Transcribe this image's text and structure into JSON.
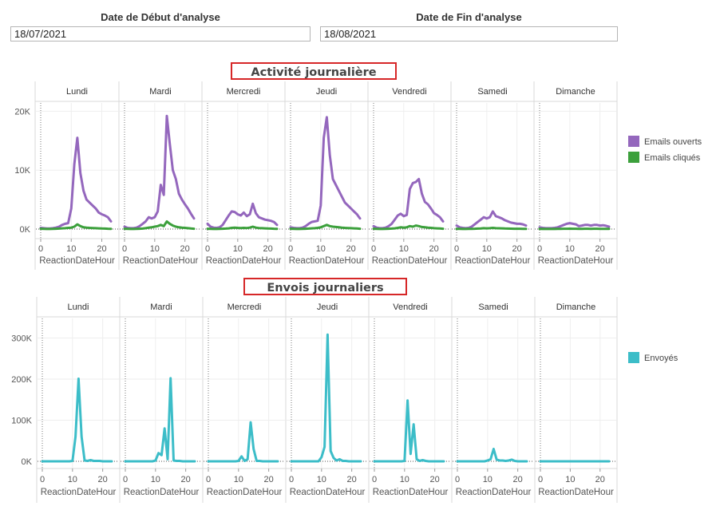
{
  "filters": {
    "start_label": "Date de Début d'analyse",
    "start_value": "18/07/2021",
    "end_label": "Date de Fin d'analyse",
    "end_value": "18/08/2021"
  },
  "colors": {
    "opened": "#9467bd",
    "clicked": "#3ca03c",
    "sent": "#3cbdc8",
    "title_border": "#d62728"
  },
  "chart_data": [
    {
      "type": "line",
      "title": "Activité journalière",
      "facets": [
        "Lundi",
        "Mardi",
        "Mercredi",
        "Jeudi",
        "Vendredi",
        "Samedi",
        "Dimanche"
      ],
      "xlabel": "ReactionDateHour",
      "xlim": [
        0,
        23
      ],
      "x_ticks": [
        0,
        10,
        20
      ],
      "ylim": [
        0,
        21000
      ],
      "y_ticks": [
        {
          "value": 0,
          "label": "0K"
        },
        {
          "value": 10000,
          "label": "10K"
        },
        {
          "value": 20000,
          "label": "20K"
        }
      ],
      "grid": true,
      "legend_position": "right",
      "series": [
        {
          "name": "Emails ouverts",
          "color_key": "opened",
          "x": [
            0,
            1,
            2,
            3,
            4,
            5,
            6,
            7,
            8,
            9,
            10,
            11,
            12,
            13,
            14,
            15,
            16,
            17,
            18,
            19,
            20,
            21,
            22,
            23
          ],
          "values_by_facet": [
            [
              200,
              150,
              100,
              100,
              150,
              250,
              400,
              700,
              900,
              1000,
              3500,
              11000,
              15500,
              9500,
              6500,
              5000,
              4500,
              4000,
              3500,
              2800,
              2500,
              2300,
              2000,
              1300
            ],
            [
              400,
              200,
              150,
              150,
              250,
              500,
              900,
              1300,
              2000,
              1800,
              2000,
              3000,
              7500,
              5800,
              19200,
              14500,
              10000,
              8500,
              6000,
              5000,
              4200,
              3500,
              2600,
              1800
            ],
            [
              900,
              400,
              250,
              200,
              300,
              700,
              1500,
              2300,
              3000,
              2900,
              2500,
              2300,
              2800,
              2200,
              2500,
              4300,
              2700,
              2000,
              1800,
              1600,
              1500,
              1400,
              1200,
              700
            ],
            [
              300,
              200,
              150,
              150,
              250,
              500,
              900,
              1200,
              1300,
              1400,
              4000,
              15500,
              19000,
              12500,
              8500,
              7500,
              6500,
              5500,
              4500,
              4000,
              3500,
              3000,
              2500,
              1800
            ],
            [
              500,
              250,
              150,
              150,
              250,
              500,
              900,
              1600,
              2300,
              2600,
              2200,
              2400,
              6800,
              7800,
              8000,
              8500,
              6000,
              4600,
              4200,
              3500,
              2700,
              2400,
              2000,
              1300
            ],
            [
              600,
              300,
              200,
              150,
              200,
              400,
              800,
              1200,
              1600,
              2000,
              1800,
              2000,
              3000,
              2200,
              2000,
              1800,
              1500,
              1300,
              1100,
              1000,
              900,
              900,
              800,
              600
            ],
            [
              300,
              200,
              150,
              150,
              150,
              200,
              300,
              500,
              700,
              900,
              1000,
              900,
              800,
              500,
              600,
              700,
              700,
              600,
              700,
              700,
              600,
              650,
              550,
              400
            ]
          ]
        },
        {
          "name": "Emails cliqués",
          "color_key": "clicked",
          "x": [
            0,
            1,
            2,
            3,
            4,
            5,
            6,
            7,
            8,
            9,
            10,
            11,
            12,
            13,
            14,
            15,
            16,
            17,
            18,
            19,
            20,
            21,
            22,
            23
          ],
          "values_by_facet": [
            [
              50,
              30,
              20,
              20,
              30,
              50,
              80,
              120,
              150,
              200,
              250,
              400,
              800,
              500,
              300,
              250,
              200,
              180,
              150,
              120,
              100,
              80,
              60,
              40
            ],
            [
              60,
              30,
              20,
              20,
              30,
              50,
              80,
              150,
              250,
              300,
              400,
              500,
              700,
              500,
              1300,
              900,
              600,
              400,
              300,
              250,
              200,
              150,
              100,
              60
            ],
            [
              50,
              30,
              20,
              20,
              30,
              50,
              80,
              120,
              200,
              250,
              200,
              180,
              200,
              180,
              250,
              400,
              250,
              180,
              150,
              120,
              100,
              80,
              60,
              40
            ],
            [
              50,
              30,
              20,
              20,
              30,
              50,
              80,
              120,
              150,
              200,
              300,
              500,
              700,
              500,
              400,
              350,
              300,
              250,
              200,
              180,
              150,
              120,
              100,
              60
            ],
            [
              50,
              30,
              20,
              20,
              30,
              50,
              80,
              120,
              200,
              300,
              250,
              300,
              500,
              400,
              600,
              500,
              350,
              300,
              250,
              200,
              150,
              120,
              100,
              60
            ],
            [
              40,
              30,
              20,
              20,
              30,
              40,
              60,
              80,
              100,
              150,
              120,
              150,
              200,
              150,
              130,
              120,
              100,
              80,
              70,
              60,
              50,
              50,
              40,
              30
            ],
            [
              30,
              20,
              20,
              20,
              20,
              20,
              30,
              40,
              50,
              60,
              70,
              60,
              50,
              40,
              40,
              50,
              50,
              40,
              50,
              50,
              40,
              40,
              30,
              30
            ]
          ]
        }
      ]
    },
    {
      "type": "line",
      "title": "Envois journaliers",
      "facets": [
        "Lundi",
        "Mardi",
        "Mercredi",
        "Jeudi",
        "Vendredi",
        "Samedi",
        "Dimanche"
      ],
      "xlabel": "ReactionDateHour",
      "xlim": [
        0,
        23
      ],
      "x_ticks": [
        0,
        10,
        20
      ],
      "ylim": [
        0,
        330000
      ],
      "y_ticks": [
        {
          "value": 0,
          "label": "0K"
        },
        {
          "value": 100000,
          "label": "100K"
        },
        {
          "value": 200000,
          "label": "200K"
        },
        {
          "value": 300000,
          "label": "300K"
        }
      ],
      "grid": true,
      "legend_position": "right",
      "series": [
        {
          "name": "Envoyés",
          "color_key": "sent",
          "x": [
            0,
            1,
            2,
            3,
            4,
            5,
            6,
            7,
            8,
            9,
            10,
            11,
            12,
            13,
            14,
            15,
            16,
            17,
            18,
            19,
            20,
            21,
            22,
            23
          ],
          "values_by_facet": [
            [
              0,
              0,
              0,
              0,
              0,
              0,
              0,
              0,
              0,
              0,
              1000,
              60000,
              201000,
              60000,
              2000,
              1000,
              3000,
              1000,
              1000,
              1000,
              0,
              0,
              0,
              0
            ],
            [
              0,
              0,
              0,
              0,
              0,
              0,
              0,
              0,
              0,
              0,
              2000,
              20000,
              15000,
              80000,
              5000,
              202000,
              2000,
              1000,
              1000,
              0,
              0,
              0,
              0,
              0
            ],
            [
              0,
              0,
              0,
              0,
              0,
              0,
              0,
              0,
              0,
              0,
              1000,
              12000,
              1000,
              5000,
              95000,
              30000,
              1000,
              1000,
              0,
              0,
              0,
              0,
              0,
              0
            ],
            [
              0,
              0,
              0,
              0,
              0,
              0,
              0,
              0,
              0,
              0,
              10000,
              35000,
              308000,
              25000,
              8000,
              2000,
              5000,
              1000,
              1000,
              0,
              0,
              0,
              0,
              0
            ],
            [
              0,
              0,
              0,
              0,
              0,
              0,
              0,
              0,
              0,
              0,
              1000,
              148000,
              18000,
              90000,
              5000,
              1000,
              3000,
              1000,
              0,
              0,
              0,
              0,
              0,
              0
            ],
            [
              0,
              0,
              0,
              0,
              0,
              0,
              0,
              0,
              0,
              0,
              2000,
              5000,
              30000,
              4000,
              2000,
              2000,
              1000,
              2000,
              4000,
              1000,
              0,
              0,
              0,
              0
            ],
            [
              0,
              0,
              0,
              0,
              0,
              0,
              0,
              0,
              0,
              0,
              0,
              0,
              0,
              0,
              0,
              0,
              0,
              0,
              0,
              0,
              0,
              0,
              0,
              0
            ]
          ]
        }
      ]
    }
  ]
}
